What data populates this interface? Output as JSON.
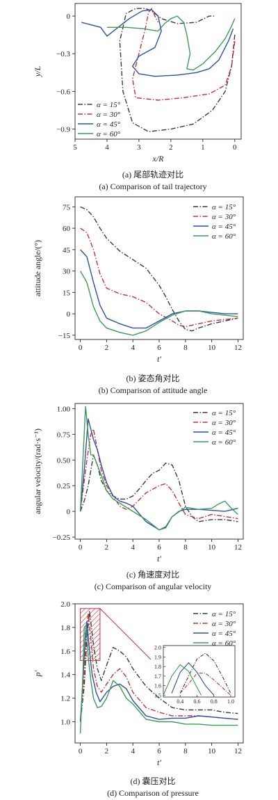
{
  "colors": {
    "a15": "#3a3a3a",
    "a30": "#c8303a",
    "a45": "#2a52a0",
    "a60": "#3f9a5a",
    "hatch": "#c8303a"
  },
  "legend": [
    "α = 15°",
    "α = 30°",
    "α = 45°",
    "α = 60°"
  ],
  "chart_data": [
    {
      "id": "a",
      "type": "line",
      "xlabel": "x/R",
      "ylabel": "y/L",
      "caption_cn": "(a) 尾部轨迹对比",
      "caption_en": "(a) Comparison of tail trajectory",
      "xlim": [
        5,
        -0.2
      ],
      "ylim": [
        -0.98,
        0.1
      ],
      "xticks": [
        5,
        4,
        3,
        2,
        1,
        0
      ],
      "yticks": [
        0,
        -0.3,
        -0.6,
        -0.9
      ],
      "ytick_labels": [
        "0",
        "−0.3",
        "−0.6",
        "−0.9"
      ],
      "legend_position": "bottom-left",
      "series": [
        {
          "name": "α = 15°",
          "style": "dashdot",
          "x": [
            0,
            0.1,
            0.3,
            0.7,
            1.3,
            2.0,
            2.7,
            3.2,
            3.5,
            3.6,
            3.4,
            3.1,
            2.8,
            2.6,
            2.3,
            1.8,
            1.2,
            0.8,
            0.6
          ],
          "y": [
            -0.15,
            -0.4,
            -0.6,
            -0.75,
            -0.86,
            -0.9,
            -0.92,
            -0.85,
            -0.6,
            -0.2,
            0.02,
            0.06,
            0.06,
            0.04,
            -0.02,
            -0.06,
            -0.05,
            0,
            0
          ]
        },
        {
          "name": "α = 30°",
          "style": "dashdot",
          "x": [
            0,
            0.1,
            0.3,
            0.8,
            1.6,
            2.4,
            3.1,
            3.2,
            3.0,
            2.8,
            2.7,
            2.6,
            2.5,
            2.4
          ],
          "y": [
            -0.2,
            -0.4,
            -0.55,
            -0.62,
            -0.65,
            -0.67,
            -0.65,
            -0.5,
            -0.3,
            -0.1,
            0.03,
            0.06,
            0.0,
            -0.05
          ]
        },
        {
          "name": "α = 45°",
          "style": "solid",
          "x": [
            4.8,
            4.2,
            4.0,
            3.7,
            3.3,
            2.9,
            2.6,
            2.4,
            2.3,
            2.5,
            3.0,
            3.2,
            3.0,
            2.5,
            1.8,
            1.2,
            0.8,
            0.5,
            0.2,
            0.05
          ],
          "y": [
            -0.05,
            -0.09,
            -0.16,
            -0.1,
            -0.02,
            0.04,
            0.05,
            0.0,
            -0.12,
            -0.25,
            -0.32,
            -0.4,
            -0.46,
            -0.48,
            -0.47,
            -0.45,
            -0.42,
            -0.35,
            -0.2,
            -0.1
          ]
        },
        {
          "name": "α = 60°",
          "style": "solid",
          "x": [
            4.0,
            3.4,
            2.9,
            2.4,
            2.2,
            2.0,
            1.8,
            1.6,
            1.5,
            1.4,
            1.5,
            1.3,
            1.0,
            0.6,
            0.3,
            0.1,
            0.0
          ],
          "y": [
            -0.09,
            -0.09,
            -0.1,
            -0.12,
            -0.06,
            -0.02,
            0.0,
            -0.05,
            -0.15,
            -0.3,
            -0.42,
            -0.43,
            -0.38,
            -0.28,
            -0.18,
            -0.08,
            -0.02
          ]
        }
      ]
    },
    {
      "id": "b",
      "type": "line",
      "xlabel": "t′",
      "ylabel": "attitude angle/(°)",
      "caption_cn": "(b) 姿态角对比",
      "caption_en": "(b) Comparison of attitude angle",
      "xlim": [
        -0.4,
        12.4
      ],
      "ylim": [
        -18,
        82
      ],
      "xticks": [
        0,
        2,
        4,
        6,
        8,
        10,
        12
      ],
      "yticks": [
        75,
        60,
        45,
        30,
        15,
        0,
        -15
      ],
      "ytick_labels": [
        "75",
        "60",
        "45",
        "30",
        "15",
        "0",
        "−15"
      ],
      "legend_position": "top-right",
      "series": [
        {
          "name": "α = 15°",
          "style": "dashdot",
          "x": [
            0,
            0.5,
            1,
            1.5,
            2,
            3,
            4,
            5,
            6,
            6.5,
            7,
            7.5,
            8,
            8.5,
            9,
            10,
            11,
            12
          ],
          "y": [
            75,
            73,
            68,
            60,
            53,
            44,
            38,
            32,
            20,
            12,
            3,
            -5,
            -11,
            -12,
            -10,
            -7,
            -5,
            -3
          ]
        },
        {
          "name": "α = 30°",
          "style": "dashdot",
          "x": [
            0,
            0.5,
            1,
            1.5,
            2,
            3,
            4,
            5,
            6,
            7,
            7.5,
            8,
            9,
            10,
            11,
            12
          ],
          "y": [
            60,
            57,
            45,
            28,
            18,
            14,
            12,
            8,
            0,
            -5,
            -8,
            -9,
            -7,
            -5,
            -4,
            -3
          ]
        },
        {
          "name": "α = 45°",
          "style": "solid",
          "x": [
            0,
            0.5,
            1,
            1.5,
            2,
            3,
            4,
            5,
            6,
            7,
            8,
            9,
            10,
            11,
            12
          ],
          "y": [
            45,
            40,
            22,
            6,
            -3,
            -7,
            -10,
            -10,
            -5,
            0,
            2,
            2,
            1,
            0,
            0
          ]
        },
        {
          "name": "α = 60°",
          "style": "solid",
          "x": [
            0,
            0.5,
            1,
            1.5,
            2,
            3,
            4,
            5,
            6,
            7,
            8,
            9,
            10,
            11,
            12
          ],
          "y": [
            30,
            22,
            5,
            -5,
            -10,
            -13,
            -15,
            -12,
            -6,
            -1,
            2,
            2,
            0,
            -1,
            -2
          ]
        }
      ]
    },
    {
      "id": "c",
      "type": "line",
      "xlabel": "t′",
      "ylabel": "angular velocity/(rad·s⁻¹)",
      "caption_cn": "(c) 角速度对比",
      "caption_en": "(c) Comparison of angular velocity",
      "xlim": [
        -0.4,
        12.4
      ],
      "ylim": [
        -0.27,
        1.05
      ],
      "xticks": [
        0,
        2,
        4,
        6,
        8,
        10,
        12
      ],
      "yticks": [
        1.0,
        0.75,
        0.5,
        0.25,
        0,
        -0.25
      ],
      "ytick_labels": [
        "1.00",
        "0.75",
        "0.50",
        "0.25",
        "0",
        "−0.25"
      ],
      "legend_position": "top-right",
      "series": [
        {
          "name": "α = 15°",
          "style": "dashdot",
          "x": [
            0,
            0.3,
            0.6,
            1.0,
            1.3,
            1.6,
            2.0,
            2.5,
            3,
            3.5,
            4,
            4.5,
            5,
            5.5,
            6,
            6.5,
            7,
            7.5,
            8,
            8.5,
            9,
            10,
            11,
            12
          ],
          "y": [
            0,
            0.1,
            0.25,
            0.55,
            0.45,
            0.3,
            0.2,
            0.15,
            0.12,
            0.12,
            0.15,
            0.22,
            0.3,
            0.37,
            0.4,
            0.47,
            0.45,
            0.3,
            0.05,
            -0.05,
            -0.1,
            -0.08,
            -0.08,
            -0.1
          ]
        },
        {
          "name": "α = 30°",
          "style": "dashdot",
          "x": [
            0,
            0.5,
            0.8,
            1.0,
            1.3,
            1.6,
            2.0,
            2.5,
            3,
            3.5,
            4,
            5,
            6,
            6.5,
            7,
            7.5,
            8,
            9,
            10,
            11,
            12
          ],
          "y": [
            0,
            0.5,
            0.75,
            0.8,
            0.6,
            0.4,
            0.25,
            0.15,
            0.05,
            0.02,
            0.05,
            0.18,
            0.25,
            0.27,
            0.2,
            0.08,
            -0.03,
            -0.07,
            -0.03,
            -0.05,
            -0.07
          ]
        },
        {
          "name": "α = 45°",
          "style": "solid",
          "x": [
            0,
            0.3,
            0.6,
            0.8,
            1.0,
            1.3,
            1.6,
            2.0,
            2.5,
            3,
            3.5,
            4,
            5,
            6,
            6.5,
            7,
            7.5,
            8,
            9,
            10,
            11,
            12
          ],
          "y": [
            0,
            0.4,
            0.9,
            0.8,
            0.7,
            0.6,
            0.45,
            0.28,
            0.15,
            0.1,
            0.08,
            0.05,
            -0.1,
            -0.18,
            -0.15,
            -0.05,
            0.0,
            0.02,
            0.02,
            0.01,
            0.0,
            0.03
          ]
        },
        {
          "name": "α = 60°",
          "style": "solid",
          "x": [
            0,
            0.2,
            0.4,
            0.6,
            0.8,
            1.0,
            1.3,
            1.6,
            2.0,
            2.5,
            3,
            4,
            5,
            6,
            6.5,
            7,
            8,
            9,
            10,
            10.5,
            11,
            11.5,
            12
          ],
          "y": [
            0,
            0.5,
            1.02,
            0.75,
            0.55,
            0.55,
            0.45,
            0.35,
            0.2,
            0.12,
            0.08,
            0.0,
            -0.08,
            -0.18,
            -0.16,
            -0.05,
            0.04,
            0.02,
            0.03,
            0.07,
            0.1,
            0.03,
            -0.03
          ]
        }
      ]
    },
    {
      "id": "d",
      "type": "line",
      "xlabel": "t′",
      "ylabel": "p′",
      "caption_cn": "(d) 囊压对比",
      "caption_en": "(d) Comparison of pressure",
      "xlim": [
        -0.4,
        12.4
      ],
      "ylim": [
        0.82,
        2.0
      ],
      "xticks": [
        0,
        2,
        4,
        6,
        8,
        10,
        12
      ],
      "yticks": [
        2.0,
        1.8,
        1.6,
        1.4,
        1.2,
        1.0
      ],
      "ytick_labels": [
        "2.0",
        "1.8",
        "1.6",
        "1.4",
        "1.2",
        "1.0"
      ],
      "legend_position": "top-right",
      "highlight_box": {
        "x": [
          0.0,
          1.5
        ],
        "y": [
          1.52,
          1.96
        ]
      },
      "series": [
        {
          "name": "α = 15°",
          "style": "dashdot",
          "x": [
            0,
            0.3,
            0.5,
            0.7,
            1.0,
            1.3,
            1.6,
            2.0,
            2.5,
            3.0,
            3.5,
            4.0,
            5,
            6,
            7,
            8,
            9,
            10,
            11,
            12
          ],
          "y": [
            1.0,
            1.3,
            1.7,
            1.94,
            1.65,
            1.45,
            1.35,
            1.48,
            1.63,
            1.6,
            1.55,
            1.45,
            1.3,
            1.2,
            1.12,
            1.1,
            1.1,
            1.1,
            1.08,
            1.07
          ]
        },
        {
          "name": "α = 30°",
          "style": "dashdot",
          "x": [
            0,
            0.3,
            0.5,
            0.6,
            0.8,
            1.0,
            1.3,
            1.6,
            2.0,
            2.5,
            3.0,
            3.5,
            4.0,
            5,
            6,
            7,
            8,
            9,
            10,
            11,
            12
          ],
          "y": [
            1.0,
            1.4,
            1.8,
            1.92,
            1.7,
            1.45,
            1.3,
            1.25,
            1.32,
            1.4,
            1.45,
            1.38,
            1.25,
            1.12,
            1.08,
            1.05,
            1.05,
            1.05,
            1.04,
            1.03,
            1.02
          ]
        },
        {
          "name": "α = 45°",
          "style": "solid",
          "x": [
            0,
            0.2,
            0.4,
            0.5,
            0.7,
            0.9,
            1.2,
            1.5,
            2.0,
            2.5,
            3.0,
            3.5,
            4.0,
            5,
            6,
            7,
            8,
            9,
            10,
            11,
            12
          ],
          "y": [
            1.0,
            1.35,
            1.75,
            1.85,
            1.6,
            1.4,
            1.25,
            1.17,
            1.25,
            1.3,
            1.32,
            1.28,
            1.18,
            1.05,
            1.02,
            1.03,
            1.03,
            1.05,
            1.04,
            1.03,
            1.02
          ]
        },
        {
          "name": "α = 60°",
          "style": "solid",
          "x": [
            0,
            0.2,
            0.3,
            0.45,
            0.6,
            0.8,
            1.0,
            1.3,
            1.6,
            2.0,
            2.5,
            3.0,
            3.5,
            4.0,
            5,
            6,
            7,
            8,
            9,
            10,
            11,
            12
          ],
          "y": [
            0.9,
            1.4,
            1.8,
            1.82,
            1.55,
            1.35,
            1.2,
            1.12,
            1.13,
            1.2,
            1.35,
            1.3,
            1.2,
            1.15,
            1.02,
            1.0,
            1.0,
            0.98,
            0.98,
            0.97,
            0.97,
            0.97
          ]
        }
      ]
    }
  ],
  "inset": {
    "xlim": [
      0.2,
      1.05
    ],
    "ylim": [
      1.48,
      2.02
    ],
    "xticks": [
      0.4,
      0.6,
      0.8,
      1.0
    ],
    "yticks": [
      2.0,
      1.9,
      1.8,
      1.7,
      1.6,
      1.5
    ],
    "series": [
      {
        "x": [
          0.4,
          0.5,
          0.6,
          0.7,
          0.8,
          0.9,
          1.0
        ],
        "y": [
          1.52,
          1.7,
          1.88,
          1.94,
          1.86,
          1.7,
          1.52
        ]
      },
      {
        "x": [
          0.4,
          0.5,
          0.6,
          0.7,
          0.8,
          0.9,
          1.0
        ],
        "y": [
          1.52,
          1.62,
          1.73,
          1.73,
          1.66,
          1.58,
          1.5
        ]
      },
      {
        "x": [
          0.3,
          0.4,
          0.5,
          0.6,
          0.7,
          0.8
        ],
        "y": [
          1.52,
          1.74,
          1.84,
          1.74,
          1.6,
          1.5
        ]
      },
      {
        "x": [
          0.2,
          0.3,
          0.4,
          0.5,
          0.6,
          0.65
        ],
        "y": [
          1.5,
          1.7,
          1.82,
          1.75,
          1.58,
          1.5
        ]
      }
    ]
  }
}
